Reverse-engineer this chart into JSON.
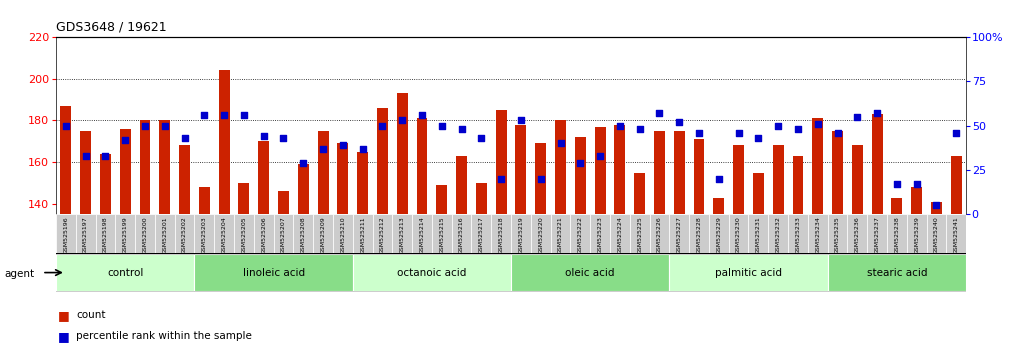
{
  "title": "GDS3648 / 19621",
  "samples": [
    "GSM525196",
    "GSM525197",
    "GSM525198",
    "GSM525199",
    "GSM525200",
    "GSM525201",
    "GSM525202",
    "GSM525203",
    "GSM525204",
    "GSM525205",
    "GSM525206",
    "GSM525207",
    "GSM525208",
    "GSM525209",
    "GSM525210",
    "GSM525211",
    "GSM525212",
    "GSM525213",
    "GSM525214",
    "GSM525215",
    "GSM525216",
    "GSM525217",
    "GSM525218",
    "GSM525219",
    "GSM525220",
    "GSM525221",
    "GSM525222",
    "GSM525223",
    "GSM525224",
    "GSM525225",
    "GSM525226",
    "GSM525227",
    "GSM525228",
    "GSM525229",
    "GSM525230",
    "GSM525231",
    "GSM525232",
    "GSM525233",
    "GSM525234",
    "GSM525235",
    "GSM525236",
    "GSM525237",
    "GSM525238",
    "GSM525239",
    "GSM525240",
    "GSM525241"
  ],
  "bar_values": [
    187,
    175,
    164,
    176,
    180,
    180,
    168,
    148,
    204,
    150,
    170,
    146,
    159,
    175,
    169,
    165,
    186,
    193,
    181,
    149,
    163,
    150,
    185,
    178,
    169,
    180,
    172,
    177,
    178,
    155,
    175,
    175,
    171,
    143,
    168,
    155,
    168,
    163,
    181,
    175,
    168,
    183,
    143,
    148,
    141,
    163
  ],
  "pct_values": [
    50,
    33,
    33,
    42,
    50,
    50,
    43,
    56,
    56,
    56,
    44,
    43,
    29,
    37,
    39,
    37,
    50,
    53,
    56,
    50,
    48,
    43,
    20,
    53,
    20,
    40,
    29,
    33,
    50,
    48,
    57,
    52,
    46,
    20,
    46,
    43,
    50,
    48,
    51,
    46,
    55,
    57,
    17,
    17,
    5,
    46
  ],
  "groups": [
    {
      "label": "control",
      "start": 0,
      "end": 7
    },
    {
      "label": "linoleic acid",
      "start": 7,
      "end": 15
    },
    {
      "label": "octanoic acid",
      "start": 15,
      "end": 23
    },
    {
      "label": "oleic acid",
      "start": 23,
      "end": 31
    },
    {
      "label": "palmitic acid",
      "start": 31,
      "end": 39
    },
    {
      "label": "stearic acid",
      "start": 39,
      "end": 46
    }
  ],
  "group_colors": [
    "#ccffcc",
    "#88dd88",
    "#ccffcc",
    "#88dd88",
    "#ccffcc",
    "#88dd88"
  ],
  "ylim_left": [
    135,
    220
  ],
  "ylim_right": [
    0,
    100
  ],
  "yticks_left": [
    140,
    160,
    180,
    200,
    220
  ],
  "yticks_right": [
    0,
    25,
    50,
    75,
    100
  ],
  "ytick_labels_right": [
    "0",
    "25",
    "50",
    "75",
    "100%"
  ],
  "bar_color": "#cc2200",
  "dot_color": "#0000cc",
  "background_color": "#ffffff",
  "grid_yticks": [
    160,
    180,
    200
  ]
}
